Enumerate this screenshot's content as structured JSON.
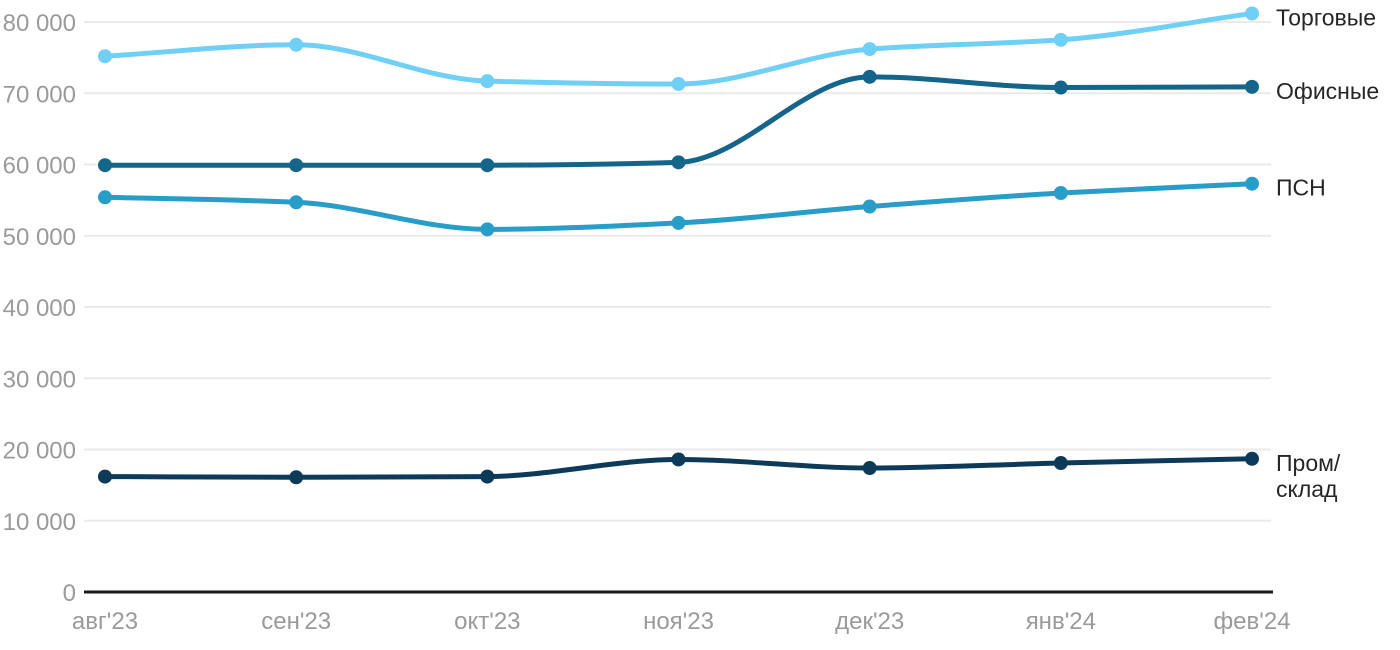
{
  "chart_data": {
    "type": "line",
    "title": "",
    "xlabel": "",
    "ylabel": "",
    "x_labels": [
      "авг'23",
      "сен'23",
      "окт'23",
      "ноя'23",
      "дек'23",
      "янв'24",
      "фев'24"
    ],
    "series": [
      {
        "name": "Торговые",
        "legend_lines": [
          "Торговые"
        ],
        "color": "#6FCFF5",
        "values": [
          75200,
          76800,
          71700,
          71300,
          76200,
          77500,
          81200
        ]
      },
      {
        "name": "Офисные",
        "legend_lines": [
          "Офисные"
        ],
        "color": "#15658A",
        "values": [
          59900,
          59900,
          59900,
          60300,
          72300,
          70800,
          70900
        ]
      },
      {
        "name": "ПСН",
        "legend_lines": [
          "ПСН"
        ],
        "color": "#289DC8",
        "values": [
          55400,
          54700,
          50900,
          51800,
          54100,
          56000,
          57300
        ]
      },
      {
        "name": "Пром/склад",
        "legend_lines": [
          "Пром/",
          "склад"
        ],
        "color": "#0E3A5A",
        "values": [
          16200,
          16100,
          16200,
          18600,
          17400,
          18100,
          18700
        ]
      }
    ],
    "ylim": [
      0,
      80000
    ],
    "y_tick_step": 10000,
    "y_tick_labels": [
      "0",
      "10 000",
      "20 000",
      "30 000",
      "40 000",
      "50 000",
      "60 000",
      "70 000",
      "80 000"
    ],
    "grid": true,
    "curve": "smooth-monotone",
    "legend_position": "right-of-line-ends",
    "styles": {
      "background": "#FFFFFF",
      "grid_color": "#EAEAEA",
      "axis_line_color": "#1A1A1A",
      "tick_label_color": "#9A9A9A",
      "legend_text_color": "#262626",
      "line_width": 5,
      "marker_radius": 7
    }
  }
}
